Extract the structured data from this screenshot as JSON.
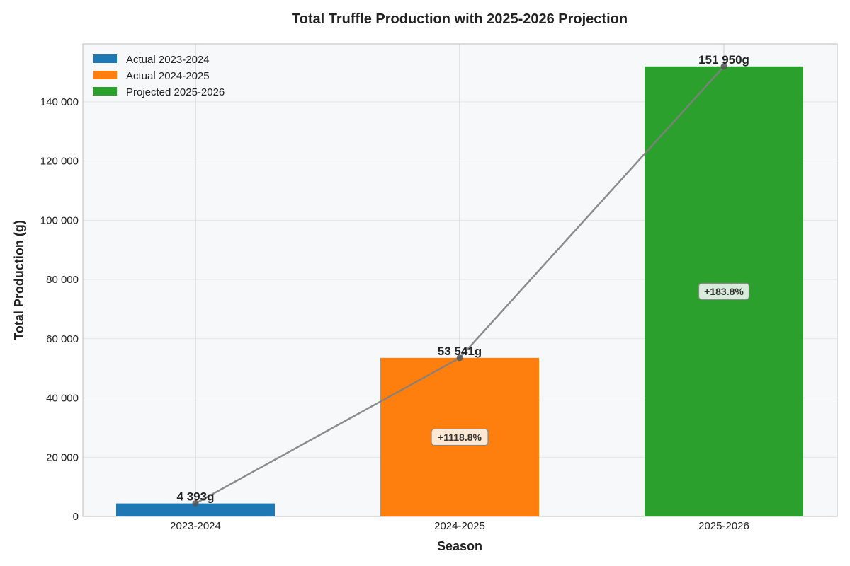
{
  "chart_data": {
    "type": "bar",
    "title": "Total Truffle Production with 2025-2026 Projection",
    "xlabel": "Season",
    "ylabel": "Total Production (g)",
    "categories": [
      "2023-2024",
      "2024-2025",
      "2025-2026"
    ],
    "values": [
      4393,
      53541,
      151950
    ],
    "value_labels": [
      "4 393g",
      "53 541g",
      "151 950g"
    ],
    "growth_labels": [
      "",
      "+1118.8%",
      "+183.8%"
    ],
    "bar_colors": [
      "#1f77b4",
      "#ff7f0e",
      "#2ca02c"
    ],
    "growth_box_fills": [
      "",
      "#fde9d3",
      "#d9ecdc"
    ],
    "legend": [
      {
        "label": "Actual 2023-2024",
        "color": "#1f77b4"
      },
      {
        "label": "Actual 2024-2025",
        "color": "#ff7f0e"
      },
      {
        "label": "Projected 2025-2026",
        "color": "#2ca02c"
      }
    ],
    "legend_position": "top-left",
    "trend_line": true,
    "trend_line_color": "#808080",
    "ylim": [
      0,
      159547.5
    ],
    "yticks": [
      0,
      20000,
      40000,
      60000,
      80000,
      100000,
      120000,
      140000
    ],
    "ytick_labels": [
      "0",
      "20 000",
      "40 000",
      "60 000",
      "80 000",
      "100 000",
      "120 000",
      "140 000"
    ],
    "grid": true,
    "plot_background": "#f7f8fa"
  }
}
